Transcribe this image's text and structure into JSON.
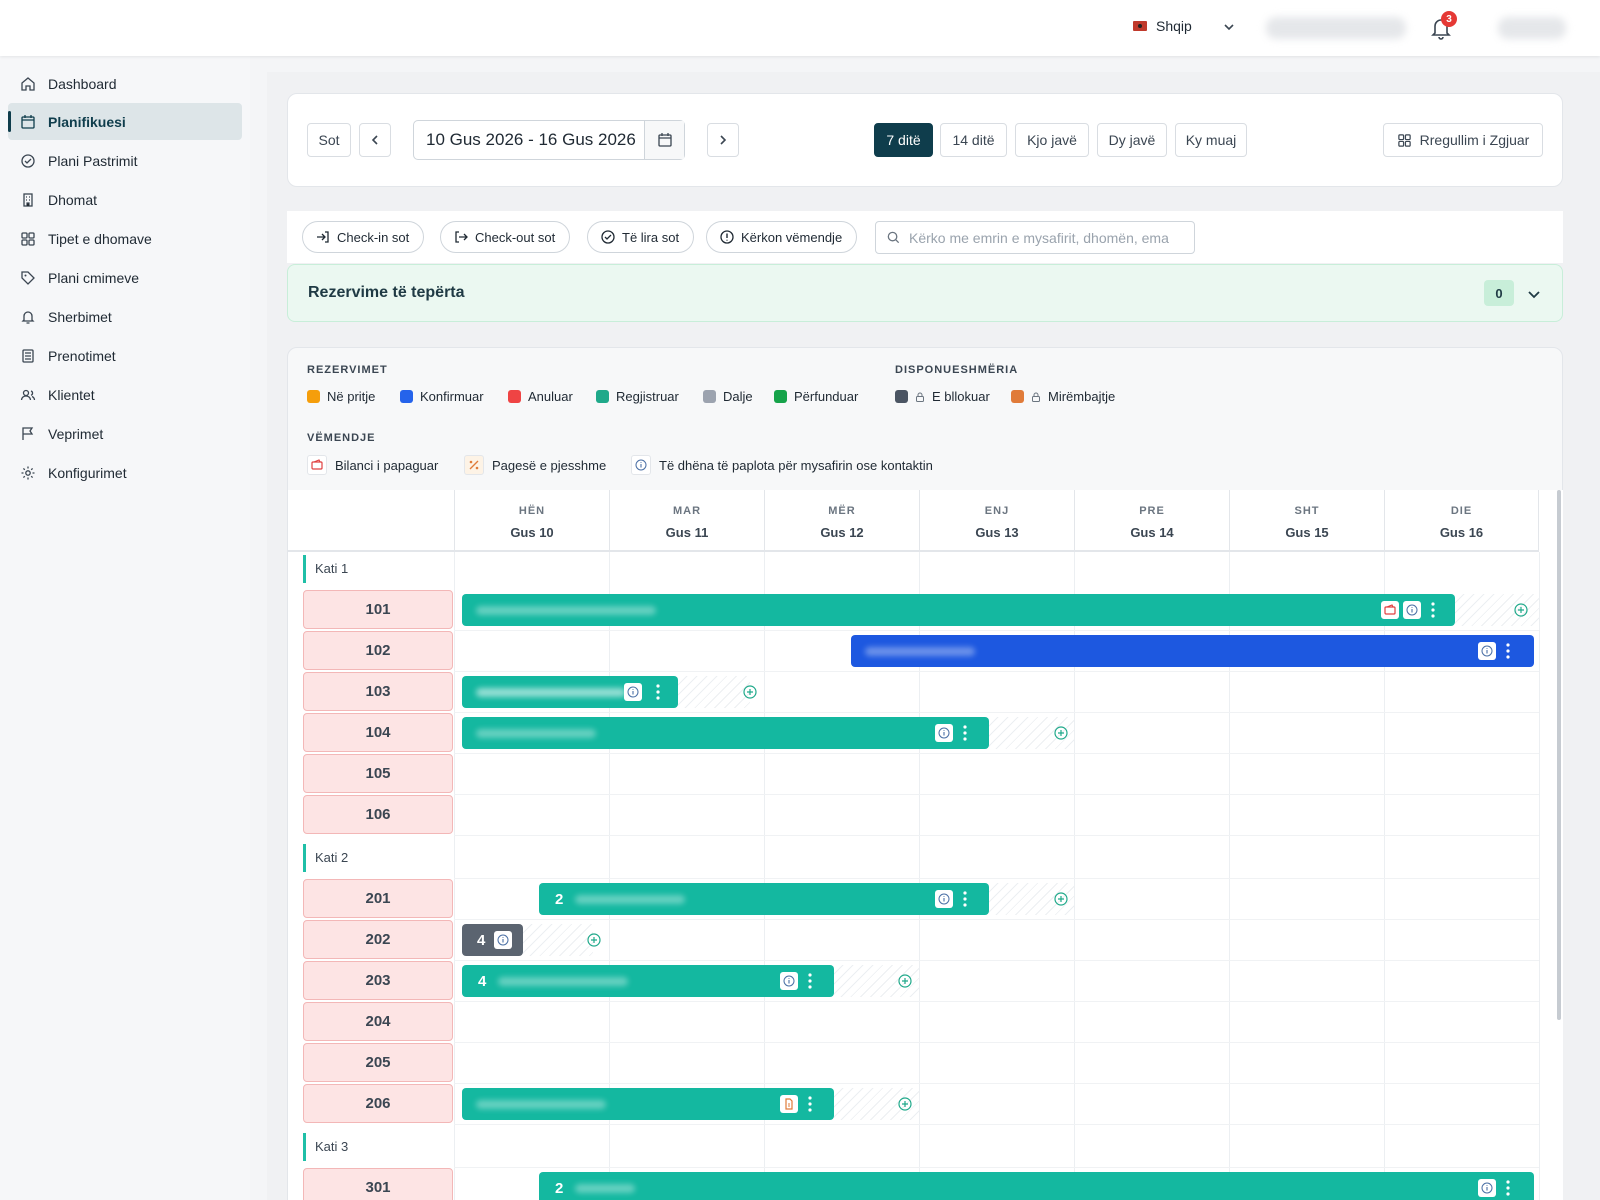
{
  "topbar": {
    "language": "Shqip",
    "notifications": "3"
  },
  "sidebar": {
    "items": [
      {
        "label": "Dashboard",
        "icon": "home-icon"
      },
      {
        "label": "Planifikuesi",
        "icon": "calendar-icon",
        "active": true
      },
      {
        "label": "Plani Pastrimit",
        "icon": "check-circle-icon"
      },
      {
        "label": "Dhomat",
        "icon": "building-icon"
      },
      {
        "label": "Tipet e dhomave",
        "icon": "grid-icon"
      },
      {
        "label": "Plani cmimeve",
        "icon": "tag-icon"
      },
      {
        "label": "Sherbimet",
        "icon": "bell-icon"
      },
      {
        "label": "Prenotimet",
        "icon": "list-icon"
      },
      {
        "label": "Klientet",
        "icon": "users-icon"
      },
      {
        "label": "Veprimet",
        "icon": "flag-icon"
      },
      {
        "label": "Konfigurimet",
        "icon": "gear-icon"
      }
    ]
  },
  "toolbar": {
    "today": "Sot",
    "range": "10 Gus 2026 - 16 Gus 2026",
    "views": [
      "7 ditë",
      "14 ditë",
      "Kjo javë",
      "Dy javë",
      "Ky muaj"
    ],
    "active_view": "7 ditë",
    "custom": "Rregullim i Zgjuar"
  },
  "filters": {
    "checkin": "Check-in sot",
    "checkout": "Check-out sot",
    "free": "Të lira sot",
    "attention": "Kërkon vëmendje",
    "search_placeholder": "Kërko me emrin e mysafirit, dhomën, email..."
  },
  "overbooking": {
    "title": "Rezervime të tepërta",
    "count": "0"
  },
  "legend": {
    "reservations_title": "REZERVIMET",
    "reservations": [
      {
        "label": "Në pritje",
        "color": "#f59e0b"
      },
      {
        "label": "Konfirmuar",
        "color": "#2563eb"
      },
      {
        "label": "Anuluar",
        "color": "#ef4444"
      },
      {
        "label": "Regjistruar",
        "color": "#1fa98a"
      },
      {
        "label": "Dalje",
        "color": "#9ca3af"
      },
      {
        "label": "Përfunduar",
        "color": "#16a34a"
      }
    ],
    "availability_title": "DISPONUESHMËRIA",
    "availability": [
      {
        "label": "E bllokuar",
        "color": "#4b5563"
      },
      {
        "label": "Mirëmbajtje",
        "color": "#e07b39"
      }
    ],
    "attention_title": "VËMENDJE",
    "attention": [
      {
        "label": "Bilanci i papaguar",
        "icon": "wallet-icon"
      },
      {
        "label": "Pagesë e pjesshme",
        "icon": "percent-icon"
      },
      {
        "label": "Të dhëna të paplota për mysafirin ose kontaktin",
        "icon": "info-icon"
      }
    ]
  },
  "days": [
    {
      "name": "HËN",
      "date": "Gus 10"
    },
    {
      "name": "MAR",
      "date": "Gus 11"
    },
    {
      "name": "MËR",
      "date": "Gus 12"
    },
    {
      "name": "ENJ",
      "date": "Gus 13"
    },
    {
      "name": "PRE",
      "date": "Gus 14"
    },
    {
      "name": "SHT",
      "date": "Gus 15"
    },
    {
      "name": "DIE",
      "date": "Gus 16"
    }
  ],
  "floors": [
    {
      "label": "Kati 1",
      "rooms": [
        "101",
        "102",
        "103",
        "104",
        "105",
        "106"
      ]
    },
    {
      "label": "Kati 2",
      "rooms": [
        "201",
        "202",
        "203",
        "204",
        "205",
        "206"
      ]
    },
    {
      "label": "Kati 3",
      "rooms": [
        "301"
      ]
    }
  ],
  "bookings": [
    {
      "room": "101",
      "guests": ""
    },
    {
      "room": "102",
      "guests": ""
    },
    {
      "room": "103",
      "guests": ""
    },
    {
      "room": "104",
      "guests": ""
    },
    {
      "room": "201",
      "guests": "2"
    },
    {
      "room": "202",
      "guests": "4"
    },
    {
      "room": "203",
      "guests": "4"
    },
    {
      "room": "206",
      "guests": ""
    },
    {
      "room": "301",
      "guests": "2"
    }
  ]
}
